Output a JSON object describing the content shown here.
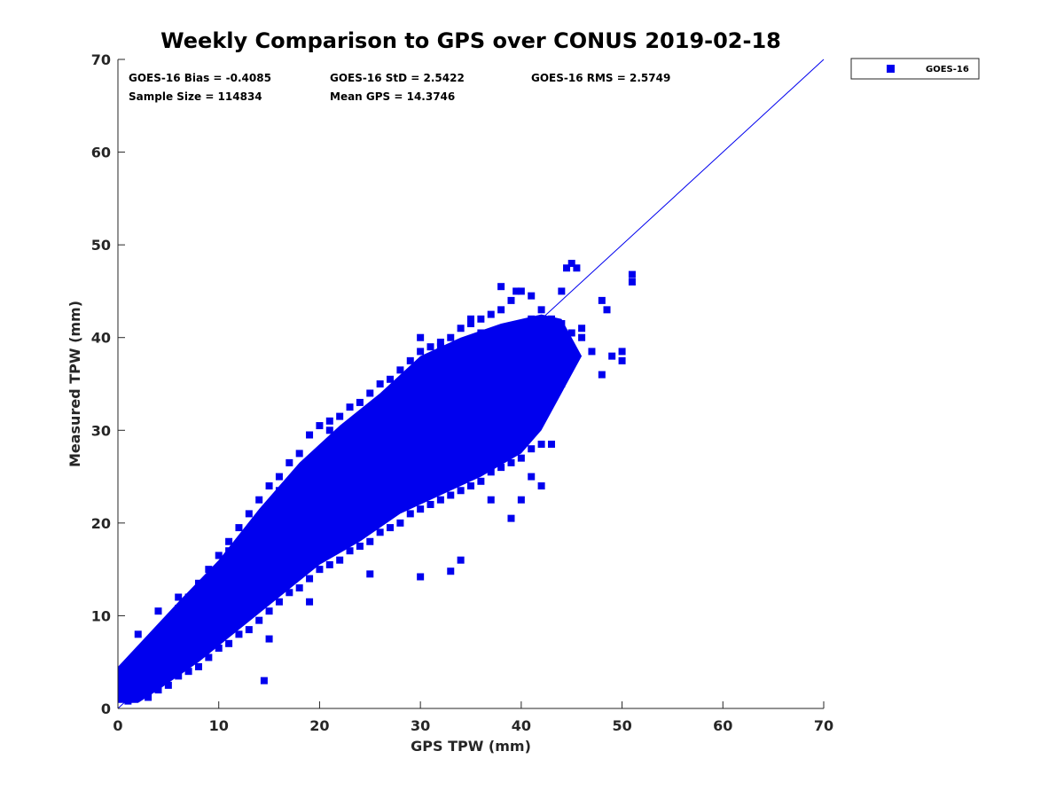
{
  "chart_data": {
    "type": "scatter",
    "title": "Weekly Comparison to GPS over CONUS 2019-02-18",
    "xlabel": "GPS TPW (mm)",
    "ylabel": "Measured TPW (mm)",
    "xlim": [
      0,
      70
    ],
    "ylim": [
      0,
      70
    ],
    "xticks": [
      "0",
      "10",
      "20",
      "30",
      "40",
      "50",
      "60",
      "70"
    ],
    "yticks": [
      "0",
      "10",
      "20",
      "30",
      "40",
      "50",
      "60",
      "70"
    ],
    "grid": false,
    "legend_position": "outside-top-right",
    "series": [
      {
        "name": "GOES-16",
        "marker": "square",
        "color": "#0000ee",
        "points": [
          [
            0.5,
            1.5
          ],
          [
            1,
            0.8
          ],
          [
            1.5,
            2.5
          ],
          [
            2,
            3
          ],
          [
            2.5,
            1.8
          ],
          [
            3,
            2.2
          ],
          [
            3,
            4
          ],
          [
            4,
            3
          ],
          [
            4,
            5
          ],
          [
            5,
            4.5
          ],
          [
            5,
            6
          ],
          [
            6,
            5.5
          ],
          [
            6,
            7.5
          ],
          [
            7,
            6.5
          ],
          [
            7,
            8.5
          ],
          [
            8,
            7.5
          ],
          [
            8,
            9.5
          ],
          [
            9,
            8.5
          ],
          [
            9,
            10.5
          ],
          [
            10,
            9.5
          ],
          [
            10,
            11.5
          ],
          [
            11,
            10
          ],
          [
            11,
            12.5
          ],
          [
            12,
            11
          ],
          [
            12,
            13.5
          ],
          [
            13,
            12.5
          ],
          [
            13,
            14.5
          ],
          [
            14,
            13.5
          ],
          [
            14,
            15.5
          ],
          [
            15,
            14.5
          ],
          [
            15,
            16.5
          ],
          [
            16,
            15.5
          ],
          [
            16,
            17.5
          ],
          [
            17,
            16.5
          ],
          [
            17,
            18.5
          ],
          [
            18,
            17.5
          ],
          [
            18,
            19.5
          ],
          [
            19,
            18.5
          ],
          [
            19,
            20.5
          ],
          [
            20,
            19.5
          ],
          [
            20,
            21.5
          ],
          [
            21,
            20.5
          ],
          [
            21,
            22.5
          ],
          [
            22,
            21
          ],
          [
            22,
            23.5
          ],
          [
            23,
            22.5
          ],
          [
            23,
            24.5
          ],
          [
            24,
            23.5
          ],
          [
            24,
            25.5
          ],
          [
            25,
            24.5
          ],
          [
            25,
            26.5
          ],
          [
            26,
            25.5
          ],
          [
            26,
            27.5
          ],
          [
            27,
            26
          ],
          [
            27,
            28.5
          ],
          [
            28,
            27.5
          ],
          [
            28,
            29.5
          ],
          [
            29,
            28.5
          ],
          [
            29,
            30.5
          ],
          [
            30,
            29.5
          ],
          [
            30,
            31.5
          ],
          [
            31,
            30.5
          ],
          [
            31,
            32.5
          ],
          [
            32,
            31.5
          ],
          [
            32,
            33.5
          ],
          [
            33,
            32
          ],
          [
            33,
            34.5
          ],
          [
            34,
            33.5
          ],
          [
            34,
            35.5
          ],
          [
            35,
            34.5
          ],
          [
            35,
            36.5
          ],
          [
            36,
            35.5
          ],
          [
            36,
            37.5
          ],
          [
            37,
            36
          ],
          [
            37,
            38.5
          ],
          [
            38,
            37.5
          ],
          [
            38,
            39.5
          ],
          [
            39,
            38
          ],
          [
            39,
            40.5
          ],
          [
            40,
            39.5
          ],
          [
            40,
            41.5
          ],
          [
            41,
            40.5
          ],
          [
            41,
            42
          ],
          [
            42,
            41.5
          ],
          [
            42,
            43
          ],
          [
            43,
            42
          ],
          [
            43,
            40
          ],
          [
            44,
            41.5
          ],
          [
            45,
            40.5
          ],
          [
            46,
            41
          ],
          [
            1,
            4.2
          ],
          [
            2,
            5.8
          ],
          [
            3,
            7.2
          ],
          [
            4,
            8.3
          ],
          [
            5,
            9.5
          ],
          [
            6,
            10.8
          ],
          [
            7,
            12
          ],
          [
            8,
            13.5
          ],
          [
            9,
            15
          ],
          [
            10,
            16.5
          ],
          [
            11,
            18
          ],
          [
            12,
            19.5
          ],
          [
            13,
            21
          ],
          [
            14,
            22.5
          ],
          [
            15,
            24
          ],
          [
            16,
            25
          ],
          [
            17,
            26.5
          ],
          [
            18,
            27.5
          ],
          [
            19,
            29.5
          ],
          [
            20,
            30.5
          ],
          [
            21,
            31
          ],
          [
            22,
            31.5
          ],
          [
            23,
            32.5
          ],
          [
            24,
            33
          ],
          [
            25,
            34
          ],
          [
            26,
            35
          ],
          [
            27,
            35.5
          ],
          [
            28,
            36.5
          ],
          [
            29,
            37.5
          ],
          [
            30,
            38.5
          ],
          [
            31,
            39
          ],
          [
            32,
            39.5
          ],
          [
            33,
            40
          ],
          [
            34,
            41
          ],
          [
            35,
            41.5
          ],
          [
            36,
            42
          ],
          [
            37,
            42.5
          ],
          [
            38,
            43
          ],
          [
            39,
            44
          ],
          [
            40,
            45
          ],
          [
            3,
            1.2
          ],
          [
            4,
            2
          ],
          [
            5,
            2.5
          ],
          [
            6,
            3.5
          ],
          [
            7,
            4
          ],
          [
            8,
            4.5
          ],
          [
            9,
            5.5
          ],
          [
            10,
            6.5
          ],
          [
            11,
            7
          ],
          [
            12,
            8
          ],
          [
            13,
            8.5
          ],
          [
            14,
            9.5
          ],
          [
            15,
            10.5
          ],
          [
            16,
            11.5
          ],
          [
            17,
            12.5
          ],
          [
            18,
            13
          ],
          [
            19,
            14
          ],
          [
            20,
            15
          ],
          [
            21,
            15.5
          ],
          [
            22,
            16
          ],
          [
            23,
            17
          ],
          [
            24,
            17.5
          ],
          [
            25,
            18
          ],
          [
            26,
            19
          ],
          [
            27,
            19.5
          ],
          [
            28,
            20
          ],
          [
            29,
            21
          ],
          [
            30,
            21.5
          ],
          [
            31,
            22
          ],
          [
            32,
            22.5
          ],
          [
            33,
            23
          ],
          [
            34,
            23.5
          ],
          [
            35,
            24
          ],
          [
            36,
            24.5
          ],
          [
            37,
            25.5
          ],
          [
            38,
            26
          ],
          [
            39,
            26.5
          ],
          [
            40,
            27
          ],
          [
            41,
            28
          ],
          [
            42,
            28.5
          ],
          [
            14.5,
            3
          ],
          [
            15,
            7.5
          ],
          [
            19,
            11.5
          ],
          [
            25,
            14.5
          ],
          [
            30,
            14.2
          ],
          [
            33,
            14.8
          ],
          [
            34,
            16
          ],
          [
            37,
            22.5
          ],
          [
            39,
            20.5
          ],
          [
            40,
            22.5
          ],
          [
            41,
            25
          ],
          [
            42,
            24
          ],
          [
            43,
            28.5
          ],
          [
            44,
            35
          ],
          [
            45,
            38
          ],
          [
            46,
            40
          ],
          [
            47,
            38.5
          ],
          [
            48,
            36
          ],
          [
            48.5,
            43
          ],
          [
            49,
            38
          ],
          [
            50,
            37.5
          ],
          [
            50,
            38.5
          ],
          [
            48,
            44
          ],
          [
            45,
            48
          ],
          [
            44.5,
            47.5
          ],
          [
            45.5,
            47.5
          ],
          [
            44,
            45
          ],
          [
            41,
            44.5
          ],
          [
            38,
            45.5
          ],
          [
            39.5,
            45
          ],
          [
            51,
            46
          ],
          [
            51,
            46.8
          ],
          [
            30,
            40
          ],
          [
            32,
            39
          ],
          [
            36,
            40.5
          ],
          [
            35,
            42
          ],
          [
            26,
            32
          ],
          [
            24,
            31
          ],
          [
            21,
            30
          ],
          [
            19,
            26.5
          ],
          [
            16,
            23.5
          ],
          [
            13,
            19
          ],
          [
            11,
            17
          ],
          [
            6,
            12
          ],
          [
            4,
            10.5
          ],
          [
            2,
            8
          ],
          [
            27,
            22.5
          ],
          [
            28,
            24.5
          ],
          [
            31,
            26
          ],
          [
            36,
            30
          ]
        ]
      }
    ],
    "fit_line": {
      "from": [
        0,
        0
      ],
      "to": [
        70,
        70
      ],
      "color": "#0000ee"
    },
    "stats": {
      "bias": "GOES-16 Bias = -0.4085",
      "std": "GOES-16 StD = 2.5422",
      "rms": "GOES-16 RMS = 2.5749",
      "sample": "Sample Size = 114834",
      "mean": "Mean GPS = 14.3746"
    }
  }
}
